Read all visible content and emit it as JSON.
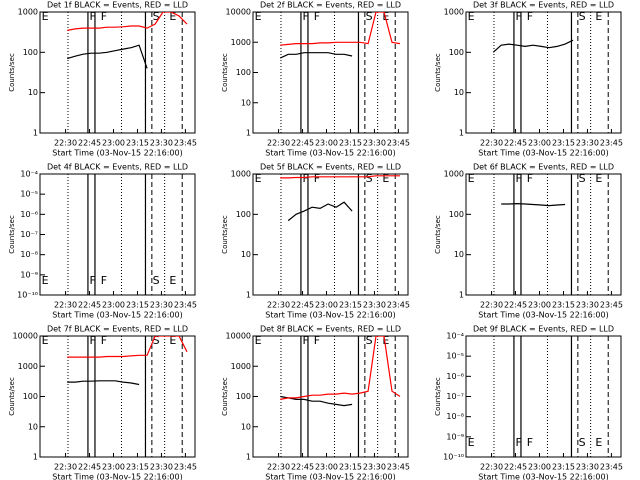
{
  "markers": [
    {
      "x": 15.5,
      "style": "dotted"
    },
    {
      "x": 28,
      "style": "solid"
    },
    {
      "x": 32.4,
      "style": "solid"
    },
    {
      "x": 49,
      "style": "dotted"
    },
    {
      "x": 64,
      "style": "solid"
    },
    {
      "x": 68,
      "style": "dashed"
    },
    {
      "x": 76,
      "style": "dotted"
    },
    {
      "x": 87,
      "style": "dashed"
    }
  ],
  "marker_labels": [
    {
      "x": -1,
      "text": "E"
    },
    {
      "x": 29,
      "text": "F"
    },
    {
      "x": 36,
      "text": "F"
    },
    {
      "x": 68.5,
      "text": "S"
    },
    {
      "x": 79,
      "text": "E"
    }
  ],
  "chart_data": [
    {
      "type": "line",
      "title": "Det 1f BLACK = Events, RED = LLD",
      "xlabel": "Start Time (03-Nov-15 22:16:00)",
      "ylabel": "Counts/sec",
      "log_y": true,
      "label_pos": "top",
      "x": [
        15,
        20,
        25,
        30,
        35,
        40,
        45,
        50,
        55,
        60,
        65,
        70,
        75,
        80,
        85,
        90
      ],
      "xlim": [
        -2,
        95
      ],
      "xticks": [
        {
          "value": 14,
          "label": "22:30"
        },
        {
          "value": 29,
          "label": "22:45"
        },
        {
          "value": 44,
          "label": "23:00"
        },
        {
          "value": 59,
          "label": "23:15"
        },
        {
          "value": 74,
          "label": "23:30"
        },
        {
          "value": 89,
          "label": "23:45"
        }
      ],
      "ylim": [
        1,
        1000
      ],
      "yticks": [
        1,
        10,
        100,
        1000
      ],
      "series": [
        {
          "color": "#000000",
          "values": [
            70,
            80,
            90,
            95,
            95,
            100,
            110,
            120,
            130,
            150,
            40,
            null,
            null,
            null,
            null,
            null
          ]
        },
        {
          "color": "#ff0000",
          "values": [
            350,
            380,
            400,
            400,
            400,
            420,
            420,
            430,
            450,
            450,
            400,
            500,
            1000,
            1000,
            800,
            500
          ]
        }
      ]
    },
    {
      "type": "line",
      "title": "Det 2f BLACK = Events, RED = LLD",
      "xlabel": "Start Time (03-Nov-15 22:16:00)",
      "ylabel": "Counts/sec",
      "log_y": true,
      "label_pos": "top",
      "x": [
        15,
        20,
        25,
        30,
        35,
        40,
        45,
        50,
        55,
        60,
        65,
        70,
        75,
        80,
        85,
        90
      ],
      "xlim": [
        -2,
        95
      ],
      "xticks": [
        {
          "value": 14,
          "label": "22:30"
        },
        {
          "value": 29,
          "label": "22:45"
        },
        {
          "value": 44,
          "label": "23:00"
        },
        {
          "value": 59,
          "label": "23:15"
        },
        {
          "value": 74,
          "label": "23:30"
        },
        {
          "value": 89,
          "label": "23:45"
        }
      ],
      "ylim": [
        1,
        10000
      ],
      "yticks": [
        1,
        10,
        100,
        1000,
        10000
      ],
      "series": [
        {
          "color": "#000000",
          "values": [
            300,
            400,
            400,
            450,
            450,
            450,
            450,
            400,
            400,
            350,
            null,
            null,
            null,
            null,
            null,
            null
          ]
        },
        {
          "color": "#ff0000",
          "values": [
            800,
            850,
            900,
            900,
            900,
            950,
            950,
            1000,
            1000,
            1000,
            1000,
            900,
            10000,
            10000,
            1000,
            900
          ]
        }
      ]
    },
    {
      "type": "line",
      "title": "Det 3f BLACK = Events, RED = LLD",
      "xlabel": "Start Time (03-Nov-15 22:16:00)",
      "ylabel": "Counts/sec",
      "log_y": true,
      "label_pos": "top",
      "x": [
        15,
        20,
        25,
        30,
        35,
        40,
        45,
        50,
        55,
        60,
        65,
        70,
        75,
        80,
        85,
        90
      ],
      "xlim": [
        -2,
        95
      ],
      "xticks": [
        {
          "value": 14,
          "label": "22:30"
        },
        {
          "value": 29,
          "label": "22:45"
        },
        {
          "value": 44,
          "label": "23:00"
        },
        {
          "value": 59,
          "label": "23:15"
        },
        {
          "value": 74,
          "label": "23:30"
        },
        {
          "value": 89,
          "label": "23:45"
        }
      ],
      "ylim": [
        1,
        1000
      ],
      "yticks": [
        1,
        10,
        100,
        1000
      ],
      "series": [
        {
          "color": "#000000",
          "values": [
            100,
            150,
            160,
            150,
            140,
            150,
            140,
            130,
            140,
            160,
            200,
            null,
            null,
            null,
            null,
            null
          ]
        }
      ]
    },
    {
      "type": "line",
      "title": "Det 4f BLACK = Events, RED = LLD",
      "xlabel": "Start Time (03-Nov-15 22:16:00)",
      "ylabel": "Counts/sec",
      "log_y": true,
      "label_pos": "bottom",
      "x": [],
      "xlim": [
        -2,
        95
      ],
      "xticks": [
        {
          "value": 14,
          "label": "22:30"
        },
        {
          "value": 29,
          "label": "22:45"
        },
        {
          "value": 44,
          "label": "23:00"
        },
        {
          "value": 59,
          "label": "23:15"
        },
        {
          "value": 74,
          "label": "23:30"
        },
        {
          "value": 89,
          "label": "23:45"
        }
      ],
      "ylim": [
        1e-10,
        0.0001
      ],
      "yticks": [
        {
          "value": 1e-10,
          "label": "10⁻¹⁰"
        },
        {
          "value": 1e-09,
          "label": "10⁻⁹"
        },
        {
          "value": 1e-08,
          "label": "10⁻⁸"
        },
        {
          "value": 1e-07,
          "label": "10⁻⁷"
        },
        {
          "value": 1e-06,
          "label": "10⁻⁶"
        },
        {
          "value": 1e-05,
          "label": "10⁻⁵"
        },
        {
          "value": 0.0001,
          "label": "10⁻⁴"
        }
      ],
      "series": []
    },
    {
      "type": "line",
      "title": "Det 5f BLACK = Events, RED = LLD",
      "xlabel": "Start Time (03-Nov-15 22:16:00)",
      "ylabel": "Counts/sec",
      "log_y": true,
      "label_pos": "top",
      "x": [
        15,
        20,
        25,
        30,
        35,
        40,
        45,
        50,
        55,
        60,
        65,
        70,
        75,
        80,
        85,
        90
      ],
      "xlim": [
        -2,
        95
      ],
      "xticks": [
        {
          "value": 14,
          "label": "22:30"
        },
        {
          "value": 29,
          "label": "22:45"
        },
        {
          "value": 44,
          "label": "23:00"
        },
        {
          "value": 59,
          "label": "23:15"
        },
        {
          "value": 74,
          "label": "23:30"
        },
        {
          "value": 89,
          "label": "23:45"
        }
      ],
      "ylim": [
        1,
        1000
      ],
      "yticks": [
        1,
        10,
        100,
        1000
      ],
      "series": [
        {
          "color": "#000000",
          "values": [
            null,
            70,
            100,
            120,
            150,
            140,
            180,
            150,
            200,
            120,
            null,
            null,
            null,
            null,
            null,
            null
          ]
        },
        {
          "color": "#ff0000",
          "values": [
            800,
            800,
            820,
            820,
            850,
            850,
            850,
            850,
            850,
            850,
            850,
            850,
            900,
            900,
            900,
            900
          ]
        }
      ]
    },
    {
      "type": "line",
      "title": "Det 6f BLACK = Events, RED = LLD",
      "xlabel": "Start Time (03-Nov-15 22:16:00)",
      "ylabel": "Counts/sec",
      "log_y": true,
      "label_pos": "top",
      "x": [
        15,
        20,
        25,
        30,
        35,
        40,
        45,
        50,
        55,
        60,
        65,
        70,
        75,
        80,
        85,
        90
      ],
      "xlim": [
        -2,
        95
      ],
      "xticks": [
        {
          "value": 14,
          "label": "22:30"
        },
        {
          "value": 29,
          "label": "22:45"
        },
        {
          "value": 44,
          "label": "23:00"
        },
        {
          "value": 59,
          "label": "23:15"
        },
        {
          "value": 74,
          "label": "23:30"
        },
        {
          "value": 89,
          "label": "23:45"
        }
      ],
      "ylim": [
        1,
        1000
      ],
      "yticks": [
        1,
        10,
        100,
        1000
      ],
      "series": [
        {
          "color": "#000000",
          "values": [
            null,
            180,
            180,
            185,
            180,
            175,
            170,
            165,
            170,
            175,
            null,
            null,
            null,
            null,
            null,
            null
          ]
        }
      ]
    },
    {
      "type": "line",
      "title": "Det 7f BLACK = Events, RED = LLD",
      "xlabel": "Start Time (03-Nov-15 22:16:00)",
      "ylabel": "Counts/sec",
      "log_y": true,
      "label_pos": "top",
      "x": [
        15,
        20,
        25,
        30,
        35,
        40,
        45,
        50,
        55,
        60,
        65,
        70,
        75,
        80,
        85,
        90
      ],
      "xlim": [
        -2,
        95
      ],
      "xticks": [
        {
          "value": 14,
          "label": "22:30"
        },
        {
          "value": 29,
          "label": "22:45"
        },
        {
          "value": 44,
          "label": "23:00"
        },
        {
          "value": 59,
          "label": "23:15"
        },
        {
          "value": 74,
          "label": "23:30"
        },
        {
          "value": 89,
          "label": "23:45"
        }
      ],
      "ylim": [
        1,
        10000
      ],
      "yticks": [
        1,
        10,
        100,
        1000,
        10000
      ],
      "series": [
        {
          "color": "#000000",
          "values": [
            300,
            300,
            320,
            320,
            330,
            330,
            330,
            300,
            280,
            250,
            null,
            null,
            null,
            null,
            null,
            null
          ]
        },
        {
          "color": "#ff0000",
          "values": [
            2000,
            2000,
            2000,
            2000,
            2000,
            2100,
            2100,
            2100,
            2200,
            2300,
            2300,
            10000,
            10000,
            10000,
            10000,
            3000
          ]
        }
      ]
    },
    {
      "type": "line",
      "title": "Det 8f BLACK = Events, RED = LLD",
      "xlabel": "Start Time (03-Nov-15 22:16:00)",
      "ylabel": "Counts/sec",
      "log_y": true,
      "label_pos": "top",
      "x": [
        15,
        20,
        25,
        30,
        35,
        40,
        45,
        50,
        55,
        60,
        65,
        70,
        75,
        80,
        85,
        90
      ],
      "xlim": [
        -2,
        95
      ],
      "xticks": [
        {
          "value": 14,
          "label": "22:30"
        },
        {
          "value": 29,
          "label": "22:45"
        },
        {
          "value": 44,
          "label": "23:00"
        },
        {
          "value": 59,
          "label": "23:15"
        },
        {
          "value": 74,
          "label": "23:30"
        },
        {
          "value": 89,
          "label": "23:45"
        }
      ],
      "ylim": [
        1,
        10000
      ],
      "yticks": [
        1,
        10,
        100,
        1000,
        10000
      ],
      "series": [
        {
          "color": "#000000",
          "values": [
            100,
            90,
            80,
            80,
            70,
            70,
            60,
            55,
            50,
            55,
            null,
            null,
            null,
            null,
            null,
            null
          ]
        },
        {
          "color": "#ff0000",
          "values": [
            80,
            90,
            90,
            100,
            110,
            110,
            120,
            120,
            130,
            120,
            130,
            150,
            10000,
            10000,
            150,
            100
          ]
        }
      ]
    },
    {
      "type": "line",
      "title": "Det 9f BLACK = Events, RED = LLD",
      "xlabel": "Start Time (03-Nov-15 22:16:00)",
      "ylabel": "Counts/sec",
      "log_y": true,
      "label_pos": "bottom",
      "x": [],
      "xlim": [
        -2,
        95
      ],
      "xticks": [
        {
          "value": 14,
          "label": "22:30"
        },
        {
          "value": 29,
          "label": "22:45"
        },
        {
          "value": 44,
          "label": "23:00"
        },
        {
          "value": 59,
          "label": "23:15"
        },
        {
          "value": 74,
          "label": "23:30"
        },
        {
          "value": 89,
          "label": "23:45"
        }
      ],
      "ylim": [
        1e-10,
        0.0001
      ],
      "yticks": [
        {
          "value": 1e-10,
          "label": "10⁻¹⁰"
        },
        {
          "value": 1e-09,
          "label": "10⁻⁹"
        },
        {
          "value": 1e-08,
          "label": "10⁻⁸"
        },
        {
          "value": 1e-07,
          "label": "10⁻⁷"
        },
        {
          "value": 1e-06,
          "label": "10⁻⁶"
        },
        {
          "value": 1e-05,
          "label": "10⁻⁵"
        },
        {
          "value": 0.0001,
          "label": "10⁻⁴"
        }
      ],
      "series": []
    }
  ]
}
